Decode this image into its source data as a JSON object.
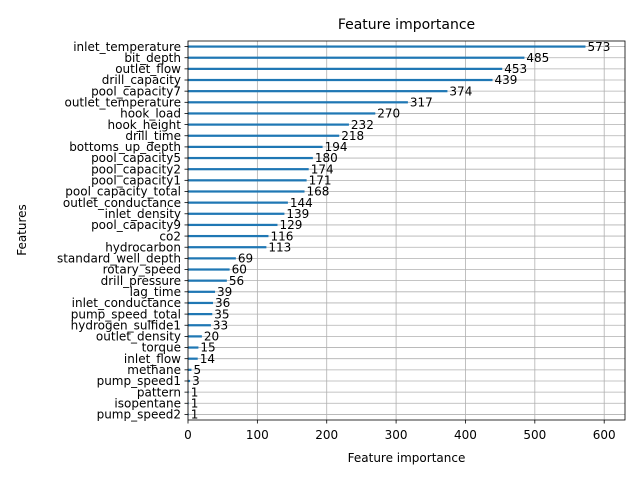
{
  "chart_data": {
    "type": "bar",
    "orientation": "horizontal",
    "title": "Feature importance",
    "xlabel": "Feature importance",
    "ylabel": "Features",
    "xlim": [
      0,
      630
    ],
    "xticks": [
      0,
      100,
      200,
      300,
      400,
      500,
      600
    ],
    "grid": true,
    "bar_color": "#1f77b4",
    "categories": [
      "inlet_temperature",
      "bit_depth",
      "outlet_flow",
      "drill_capacity",
      "pool_capacity7",
      "outlet_temperature",
      "hook_load",
      "hook_height",
      "drill_time",
      "bottoms_up_depth",
      "pool_capacity5",
      "pool_capacity2",
      "pool_capacity1",
      "pool_capacity_total",
      "outlet_conductance",
      "inlet_density",
      "pool_capacity9",
      "co2",
      "hydrocarbon",
      "standard_well_depth",
      "rotary_speed",
      "drill_pressure",
      "lag_time",
      "inlet_conductance",
      "pump_speed_total",
      "hydrogen_sulfide1",
      "outlet_density",
      "torque",
      "inlet_flow",
      "methane",
      "pump_speed1",
      "pattern",
      "isopentane",
      "pump_speed2"
    ],
    "values": [
      573,
      485,
      453,
      439,
      374,
      317,
      270,
      232,
      218,
      194,
      180,
      174,
      171,
      168,
      144,
      139,
      129,
      116,
      113,
      69,
      60,
      56,
      39,
      36,
      35,
      33,
      20,
      15,
      14,
      5,
      3,
      1,
      1,
      1
    ]
  }
}
